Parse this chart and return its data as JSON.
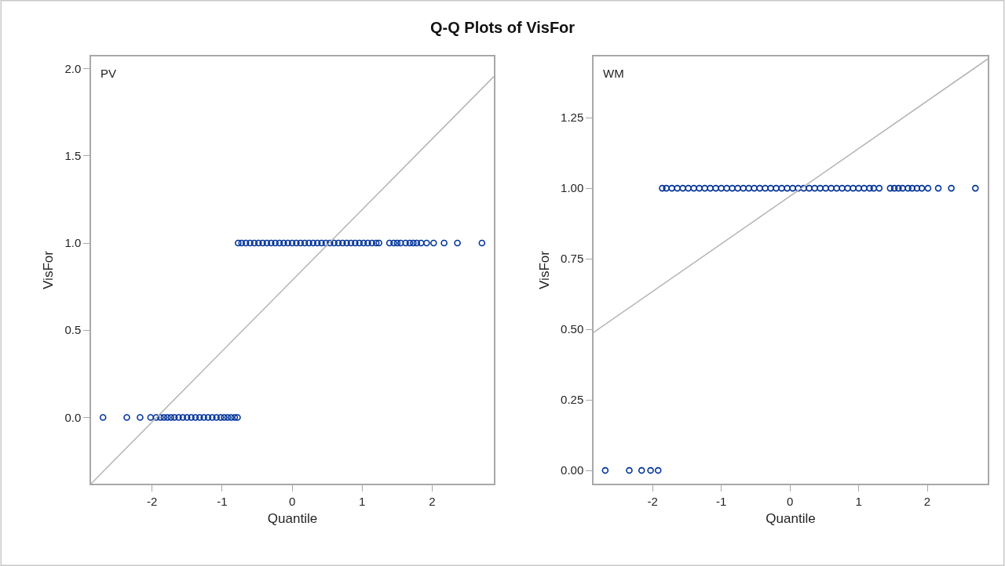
{
  "chart_data": [
    {
      "type": "scatter",
      "title": "Q-Q Plots of VisFor",
      "xlabel": "Quantile",
      "ylabel": "VisFor",
      "annotations": [
        "PV"
      ],
      "marker": "circle",
      "xlim": [
        -2.87,
        2.88
      ],
      "xticks": [
        -2,
        -1,
        0,
        1,
        2
      ],
      "ylim": [
        -0.38,
        2.07
      ],
      "yticks": [
        {
          "value": 0,
          "label": "0.0"
        },
        0.5,
        {
          "value": 1,
          "label": "1.0"
        },
        1.5,
        {
          "value": 2,
          "label": "2.0"
        }
      ],
      "series": [
        {
          "color": "#003399",
          "x": [
            -2.7,
            -2.36,
            -2.17,
            -2.02,
            -1.94,
            -1.88,
            -1.83,
            -1.78,
            -1.73,
            -1.68,
            -1.62,
            -1.56,
            -1.5,
            -1.44,
            -1.38,
            -1.32,
            -1.26,
            -1.2,
            -1.14,
            -1.08,
            -1.02,
            -0.97,
            -0.92,
            -0.87,
            -0.82,
            -0.78
          ],
          "values": [
            0,
            0,
            0,
            0,
            0,
            0,
            0,
            0,
            0,
            0,
            0,
            0,
            0,
            0,
            0,
            0,
            0,
            0,
            0,
            0,
            0,
            0,
            0,
            0,
            0,
            0
          ]
        },
        {
          "color": "#003399",
          "x": [
            -0.77,
            -0.72,
            -0.66,
            -0.6,
            -0.54,
            -0.48,
            -0.42,
            -0.36,
            -0.3,
            -0.24,
            -0.18,
            -0.12,
            -0.06,
            0.0,
            0.06,
            0.12,
            0.18,
            0.24,
            0.3,
            0.36,
            0.42,
            0.48,
            0.54,
            0.6,
            0.66,
            0.72,
            0.78,
            0.84,
            0.9,
            0.96,
            1.02,
            1.08,
            1.14,
            1.2,
            1.24,
            1.39,
            1.45,
            1.5,
            1.55,
            1.62,
            1.68,
            1.73,
            1.78,
            1.84,
            1.92,
            2.02,
            2.17,
            2.36,
            2.71
          ],
          "values": [
            1,
            1,
            1,
            1,
            1,
            1,
            1,
            1,
            1,
            1,
            1,
            1,
            1,
            1,
            1,
            1,
            1,
            1,
            1,
            1,
            1,
            1,
            1,
            1,
            1,
            1,
            1,
            1,
            1,
            1,
            1,
            1,
            1,
            1,
            1,
            1,
            1,
            1,
            1,
            1,
            1,
            1,
            1,
            1,
            1,
            1,
            1,
            1,
            1
          ]
        },
        {
          "type": "line",
          "marker": "none",
          "color": "#b4b4b4",
          "x": [
            -2.87,
            2.88
          ],
          "values": [
            -0.38,
            1.955
          ]
        }
      ]
    },
    {
      "type": "scatter",
      "xlabel": "Quantile",
      "ylabel": "VisFor",
      "annotations": [
        "WM"
      ],
      "marker": "circle",
      "xlim": [
        -2.86,
        2.88
      ],
      "xticks": [
        -2,
        -1,
        0,
        1,
        2
      ],
      "ylim": [
        -0.047,
        1.467
      ],
      "yticks": [
        {
          "value": 0,
          "label": "0.00"
        },
        0.25,
        {
          "value": 0.5,
          "label": "0.50"
        },
        0.75,
        {
          "value": 1,
          "label": "1.00"
        },
        1.25
      ],
      "series": [
        {
          "color": "#003399",
          "x": [
            -2.69,
            -2.34,
            -2.16,
            -2.03,
            -1.92
          ],
          "values": [
            0,
            0,
            0,
            0,
            0
          ]
        },
        {
          "color": "#003399",
          "x": [
            -1.86,
            -1.8,
            -1.72,
            -1.64,
            -1.56,
            -1.48,
            -1.4,
            -1.32,
            -1.24,
            -1.16,
            -1.08,
            -1.0,
            -0.92,
            -0.84,
            -0.76,
            -0.68,
            -0.6,
            -0.52,
            -0.44,
            -0.36,
            -0.28,
            -0.2,
            -0.12,
            -0.04,
            0.04,
            0.12,
            0.2,
            0.28,
            0.36,
            0.44,
            0.52,
            0.6,
            0.68,
            0.76,
            0.84,
            0.92,
            1.0,
            1.08,
            1.16,
            1.22,
            1.3,
            1.46,
            1.52,
            1.58,
            1.64,
            1.72,
            1.78,
            1.85,
            1.92,
            2.01,
            2.16,
            2.35,
            2.7
          ],
          "values": [
            1,
            1,
            1,
            1,
            1,
            1,
            1,
            1,
            1,
            1,
            1,
            1,
            1,
            1,
            1,
            1,
            1,
            1,
            1,
            1,
            1,
            1,
            1,
            1,
            1,
            1,
            1,
            1,
            1,
            1,
            1,
            1,
            1,
            1,
            1,
            1,
            1,
            1,
            1,
            1,
            1,
            1,
            1,
            1,
            1,
            1,
            1,
            1,
            1,
            1,
            1,
            1,
            1
          ]
        },
        {
          "type": "line",
          "marker": "none",
          "color": "#b4b4b4",
          "x": [
            -2.86,
            2.88
          ],
          "values": [
            0.489,
            1.458
          ]
        }
      ]
    }
  ]
}
